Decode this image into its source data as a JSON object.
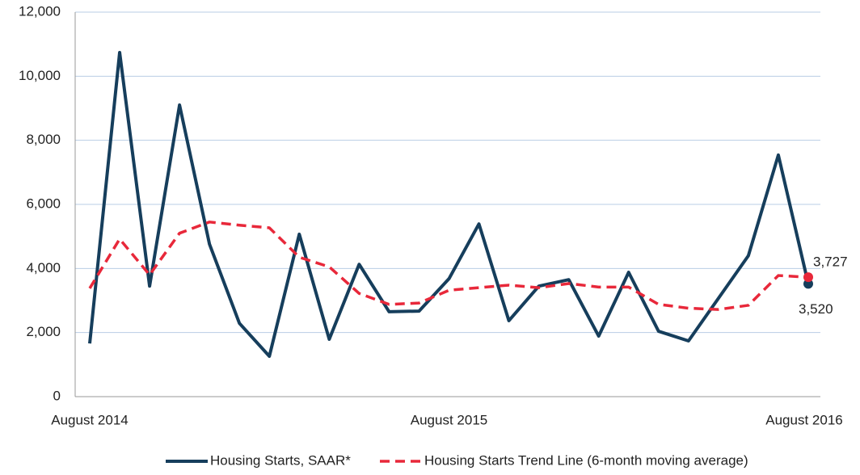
{
  "chart_data": {
    "type": "line",
    "categories": [
      "August 2014",
      null,
      null,
      null,
      null,
      null,
      null,
      null,
      null,
      null,
      null,
      null,
      "August 2015",
      null,
      null,
      null,
      null,
      null,
      null,
      null,
      null,
      null,
      null,
      null,
      "August 2016"
    ],
    "series": [
      {
        "name": "Housing Starts, SAAR*",
        "color": "#163e5c",
        "dashed": false,
        "values": [
          1660,
          10740,
          3450,
          9100,
          4760,
          2290,
          1260,
          5070,
          1790,
          4130,
          2650,
          2670,
          3680,
          5390,
          2370,
          3450,
          3650,
          1890,
          3880,
          2040,
          1740,
          3070,
          4400,
          7540,
          3520
        ],
        "value_labels": [
          null,
          null,
          null,
          null,
          null,
          null,
          null,
          null,
          null,
          null,
          null,
          null,
          null,
          null,
          null,
          null,
          null,
          null,
          null,
          null,
          null,
          null,
          null,
          null,
          "3,520"
        ]
      },
      {
        "name": "Housing Starts Trend Line (6-month moving average)",
        "color": "#e8283a",
        "dashed": true,
        "values": [
          3380,
          4920,
          3800,
          5100,
          5450,
          5350,
          5270,
          4350,
          4050,
          3220,
          2880,
          2920,
          3320,
          3400,
          3480,
          3400,
          3530,
          3420,
          3420,
          2880,
          2760,
          2720,
          2850,
          3780,
          3727
        ],
        "value_labels": [
          null,
          null,
          null,
          null,
          null,
          null,
          null,
          null,
          null,
          null,
          null,
          null,
          null,
          null,
          null,
          null,
          null,
          null,
          null,
          null,
          null,
          null,
          null,
          null,
          "3,727"
        ]
      }
    ],
    "ylim": [
      0,
      12000
    ],
    "yticks": [
      0,
      {
        "value": 2000,
        "label": "2,000"
      },
      {
        "value": 4000,
        "label": "4,000"
      },
      {
        "value": 6000,
        "label": "6,000"
      },
      {
        "value": 8000,
        "label": "8,000"
      },
      {
        "value": 10000,
        "label": "10,000"
      },
      {
        "value": 12000,
        "label": "12,000"
      }
    ],
    "grid": true,
    "legend": "bottom"
  }
}
